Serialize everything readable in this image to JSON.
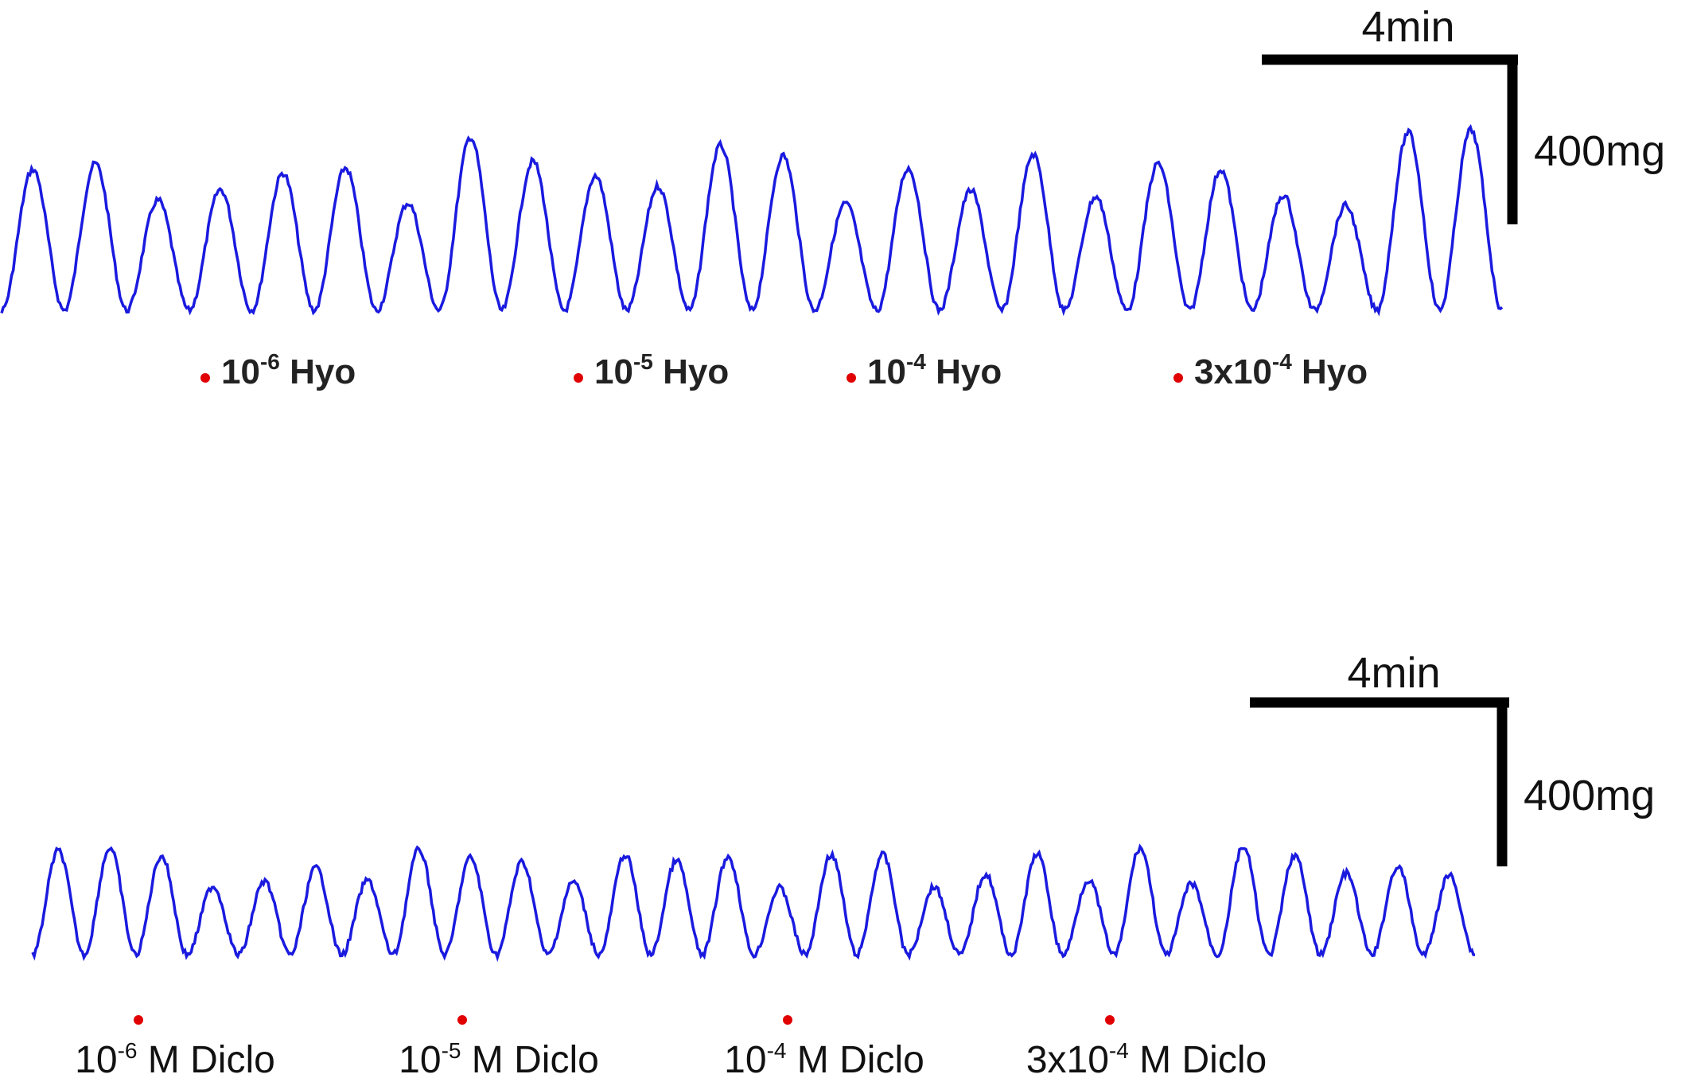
{
  "top": {
    "scale_time": "4min",
    "scale_force": "400mg",
    "labels": [
      {
        "base": "10",
        "exp": "-6",
        "rest": "Hyo"
      },
      {
        "base": "10",
        "exp": "-5",
        "rest": "Hyo"
      },
      {
        "base": "10",
        "exp": "-4",
        "rest": "Hyo"
      },
      {
        "base": "3x10",
        "exp": "-4",
        "rest": "Hyo"
      }
    ]
  },
  "bottom": {
    "scale_time": "4min",
    "scale_force": "400mg",
    "labels": [
      {
        "base": "10",
        "exp": "-6",
        "rest": "M Diclo"
      },
      {
        "base": "10",
        "exp": "-5",
        "rest": "M Diclo"
      },
      {
        "base": "10",
        "exp": "-4",
        "rest": "M Diclo"
      },
      {
        "base": "3x10",
        "exp": "-4",
        "rest": "M Diclo"
      }
    ]
  }
}
